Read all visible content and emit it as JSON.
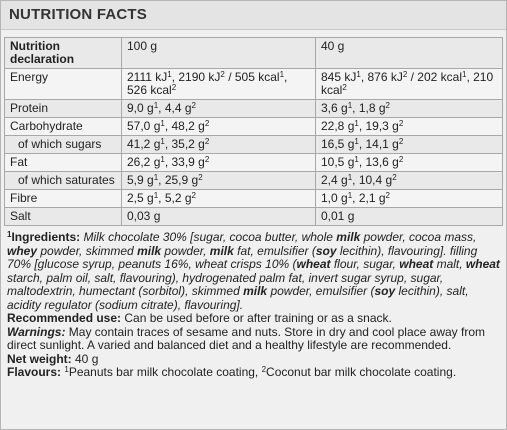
{
  "title": "NUTRITION FACTS",
  "header": {
    "label": "Nutrition declaration",
    "col1": "100 g",
    "col2": "40 g"
  },
  "rows": [
    {
      "name": "Energy",
      "v1": "2111 kJ",
      "s1": "1",
      "v1b": ", 2190 kJ",
      "s1b": "2",
      "v1c": " / 505 kcal",
      "s1c": "1",
      "v1d": ", 526 kcal",
      "s1d": "2",
      "v2": "845 kJ",
      "s2": "1",
      "v2b": ", 876 kJ",
      "s2b": "2",
      "v2c": " / 202 kcal",
      "s2c": "1",
      "v2d": ", 210 kcal",
      "s2d": "2"
    },
    {
      "name": "Protein",
      "v1": "9,0 g",
      "s1": "1",
      "v1b": ", 4,4 g",
      "s1b": "2",
      "v2": "3,6 g",
      "s2": "1",
      "v2b": ", 1,8 g",
      "s2b": "2"
    },
    {
      "name": "Carbohydrate",
      "v1": "57,0 g",
      "s1": "1",
      "v1b": ", 48,2 g",
      "s1b": "2",
      "v2": "22,8 g",
      "s2": "1",
      "v2b": ", 19,3 g",
      "s2b": "2"
    },
    {
      "name": "of which sugars",
      "v1": "41,2 g",
      "s1": "1",
      "v1b": ", 35,2 g",
      "s1b": "2",
      "v2": "16,5 g",
      "s2": "1",
      "v2b": ", 14,1 g",
      "s2b": "2"
    },
    {
      "name": "Fat",
      "v1": "26,2 g",
      "s1": "1",
      "v1b": ", 33,9 g",
      "s1b": "2",
      "v2": "10,5 g",
      "s2": "1",
      "v2b": ", 13,6 g",
      "s2b": "2"
    },
    {
      "name": "of which saturates",
      "v1": "5,9 g",
      "s1": "1",
      "v1b": ", 25,9 g",
      "s1b": "2",
      "v2": "2,4 g",
      "s2": "1",
      "v2b": ", 10,4 g",
      "s2b": "2"
    },
    {
      "name": "Fibre",
      "v1": "2,5 g",
      "s1": "1",
      "v1b": ", 5,2 g",
      "s1b": "2",
      "v2": "1,0 g",
      "s2": "1",
      "v2b": ", 2,1 g",
      "s2b": "2"
    },
    {
      "name": "Salt",
      "v1": "0,03 g",
      "v2": "0,01 g"
    }
  ],
  "ingredients": {
    "sup": "1",
    "label": "Ingredients:",
    "p1": " Milk chocolate 30% [sugar, cocoa butter, whole ",
    "b1": "milk",
    "p2": " powder, cocoa mass, ",
    "b2": "whey",
    "p3": " powder, skimmed ",
    "b3": "milk",
    "p4": " powder, ",
    "b4": "milk",
    "p5": " fat, emulsifier (",
    "b5": "soy",
    "p6": " lecithin), flavouring]. filling 70% [glucose syrup, peanuts 16%, wheat crisps 10% (",
    "b6": "wheat",
    "p7": " flour, sugar, ",
    "b7": "wheat",
    "p8": " malt, ",
    "b8": "wheat",
    "p9": " starch, palm oil, salt, flavouring), hydrogenated palm fat, invert sugar syrup, sugar, maltodextrin, humectant (sorbitol), skimmed ",
    "b9": "milk",
    "p10": " powder, emulsifier (",
    "b10": "soy",
    "p11": " lecithin), salt, acidity regulator (sodium citrate), flavouring]."
  },
  "recommended": {
    "label": "Recommended use:",
    "text": " Can be used before or after training or as a snack."
  },
  "warnings": {
    "label": "Warnings:",
    "text": " May contain traces of sesame and nuts. Store in dry and cool place away from direct sunlight. A varied and balanced diet and a healthy lifestyle are recommended."
  },
  "net_weight": {
    "label": "Net weight:",
    "text": " 40 g"
  },
  "flavours": {
    "label": "Flavours:",
    "s1": "1",
    "t1": "Peanuts bar milk chocolate coating, ",
    "s2": "2",
    "t2": "Coconut bar milk chocolate coating."
  }
}
